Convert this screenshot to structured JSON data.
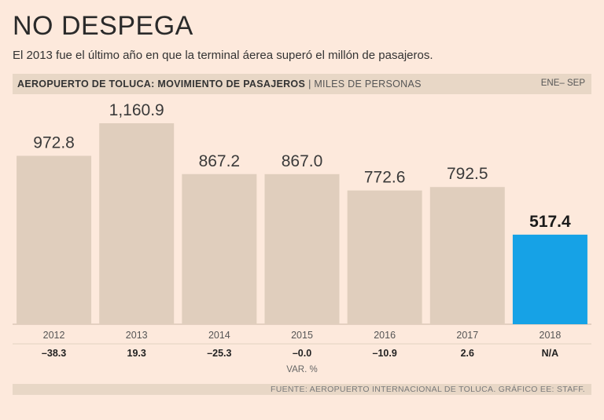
{
  "title": "NO DESPEGA",
  "subtitle": "El 2013 fue el último año en que la terminal áerea superó el millón de pasajeros.",
  "header": {
    "title": "AEROPUERTO DE TOLUCA: MOVIMIENTO DE PASAJEROS",
    "separator": "|",
    "unit": "MILES DE PERSONAS",
    "period": "ENE– SEP"
  },
  "variation_label": "VAR. %",
  "source": "FUENTE: AEROPUERTO INTERNACIONAL DE TOLUCA. GRÁFICO EE: STAFF.",
  "colors": {
    "bar": "#e0cebd",
    "highlight": "#16a2e6",
    "background": "#fde9dc"
  },
  "chart_data": {
    "type": "bar",
    "title": "AEROPUERTO DE TOLUCA: MOVIMIENTO DE PASAJEROS",
    "ylabel": "MILES DE PERSONAS",
    "xlabel": "",
    "ylim": [
      0,
      1160.9
    ],
    "categories": [
      "2012",
      "2013",
      "2014",
      "2015",
      "2016",
      "2017",
      "2018"
    ],
    "values": [
      972.8,
      1160.9,
      867.2,
      867.0,
      772.6,
      792.5,
      517.4
    ],
    "value_labels": [
      "972.8",
      "1,160.9",
      "867.2",
      "867.0",
      "772.6",
      "792.5",
      "517.4"
    ],
    "variation": [
      "–38.3",
      "19.3",
      "–25.3",
      "–0.0",
      "–10.9",
      "2.6",
      "N/A"
    ],
    "highlight_index": 6,
    "grid": false
  }
}
